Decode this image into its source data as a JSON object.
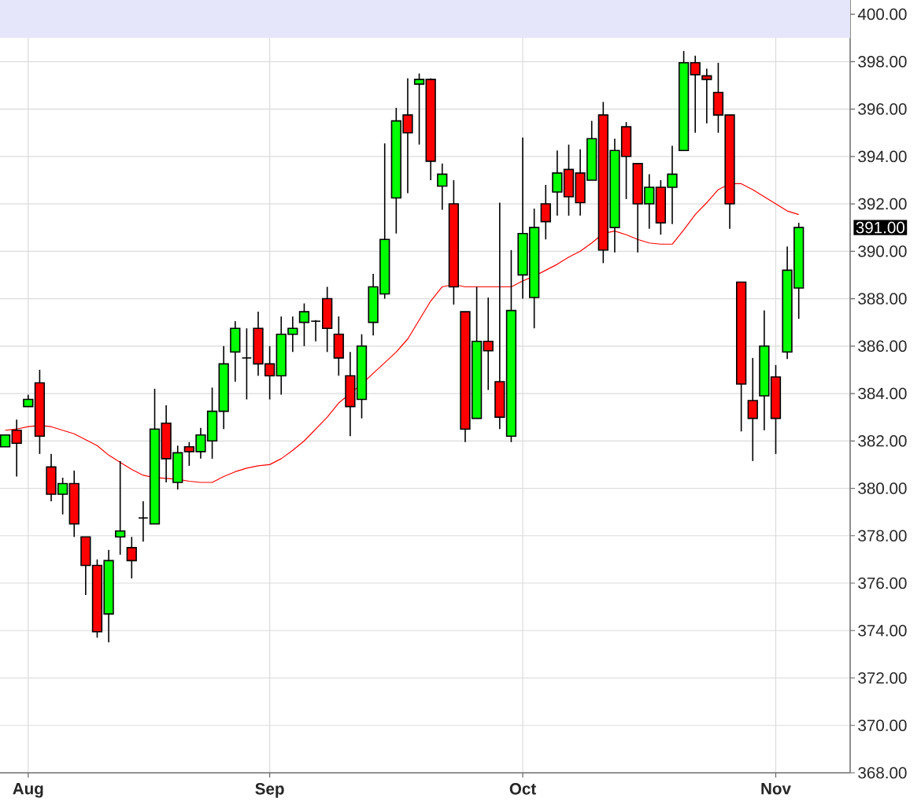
{
  "chart_data": {
    "type": "candlestick",
    "categories": [
      null,
      null,
      "Aug",
      null,
      null,
      null,
      null,
      null,
      null,
      null,
      null,
      null,
      null,
      null,
      null,
      null,
      null,
      null,
      null,
      null,
      null,
      null,
      null,
      "Sep",
      null,
      null,
      null,
      null,
      null,
      null,
      null,
      null,
      null,
      null,
      null,
      null,
      null,
      null,
      null,
      null,
      null,
      null,
      null,
      null,
      null,
      "Oct",
      null,
      null,
      null,
      null,
      null,
      null,
      null,
      null,
      null,
      null,
      null,
      null,
      null,
      null,
      null,
      null,
      null,
      null,
      null,
      null,
      null,
      "Nov",
      null,
      null
    ],
    "series": [
      {
        "type": "line",
        "color": "#ff0000",
        "values": [
          382.45,
          382.5,
          382.6,
          382.65,
          382.6,
          382.45,
          382.3,
          382.05,
          381.8,
          381.4,
          381.1,
          380.8,
          380.55,
          380.45,
          380.42,
          380.38,
          380.3,
          380.25,
          380.25,
          380.5,
          380.7,
          380.85,
          380.95,
          381.0,
          381.25,
          381.6,
          382.0,
          382.5,
          383.0,
          383.6,
          384.0,
          384.4,
          384.85,
          385.3,
          385.75,
          386.3,
          387.1,
          387.9,
          388.5,
          388.6,
          388.5,
          388.5,
          388.5,
          388.5,
          388.5,
          388.75,
          388.95,
          389.2,
          389.45,
          389.75,
          390.0,
          390.35,
          390.75,
          390.85,
          390.7,
          390.5,
          390.35,
          390.3,
          390.3,
          390.9,
          391.55,
          392.05,
          392.6,
          392.85,
          392.85,
          392.6,
          392.3,
          392.0,
          391.7,
          391.55
        ]
      },
      {
        "ohlc": [
          [
            381.75,
            382.25,
            381.75,
            382.25
          ],
          [
            382.45,
            382.9,
            380.5,
            381.9
          ],
          [
            383.45,
            383.95,
            383.45,
            383.75
          ],
          [
            384.45,
            385.0,
            381.45,
            382.2
          ],
          [
            380.9,
            381.45,
            379.45,
            379.75
          ],
          [
            379.75,
            380.45,
            378.9,
            380.2
          ],
          [
            380.2,
            380.75,
            377.95,
            378.5
          ],
          [
            377.95,
            377.95,
            375.5,
            376.75
          ],
          [
            376.75,
            377.0,
            373.7,
            373.95
          ],
          [
            374.7,
            377.4,
            373.5,
            376.95
          ],
          [
            377.95,
            381.15,
            377.2,
            378.2
          ],
          [
            377.5,
            377.95,
            376.2,
            376.95
          ],
          [
            378.75,
            379.45,
            377.75,
            378.75
          ],
          [
            378.5,
            384.2,
            378.5,
            382.5
          ],
          [
            382.75,
            383.5,
            380.25,
            381.25
          ],
          [
            380.25,
            381.8,
            379.95,
            381.5
          ],
          [
            381.75,
            381.95,
            380.95,
            381.55
          ],
          [
            381.55,
            382.55,
            381.25,
            382.25
          ],
          [
            382.0,
            384.25,
            381.25,
            383.25
          ],
          [
            383.25,
            386.0,
            382.5,
            385.25
          ],
          [
            385.75,
            387.05,
            384.5,
            386.75
          ],
          [
            385.5,
            386.75,
            383.75,
            385.5
          ],
          [
            386.75,
            387.45,
            384.75,
            385.25
          ],
          [
            385.25,
            386.0,
            383.75,
            384.75
          ],
          [
            384.75,
            387.25,
            383.95,
            386.5
          ],
          [
            386.5,
            387.25,
            385.75,
            386.75
          ],
          [
            387.0,
            387.8,
            386.0,
            387.45
          ],
          [
            387.05,
            387.1,
            386.2,
            387.05
          ],
          [
            388.0,
            388.5,
            385.75,
            386.75
          ],
          [
            386.5,
            387.25,
            384.75,
            385.5
          ],
          [
            384.75,
            385.75,
            382.2,
            383.45
          ],
          [
            383.75,
            386.5,
            382.95,
            386.0
          ],
          [
            387.0,
            389.05,
            386.45,
            388.5
          ],
          [
            388.2,
            394.55,
            388.0,
            390.5
          ],
          [
            392.25,
            396.05,
            390.75,
            395.5
          ],
          [
            395.75,
            397.3,
            392.45,
            395.0
          ],
          [
            397.05,
            397.5,
            394.5,
            397.25
          ],
          [
            397.25,
            397.3,
            393.0,
            393.8
          ],
          [
            392.75,
            393.7,
            391.75,
            393.25
          ],
          [
            392.0,
            393.0,
            387.75,
            388.5
          ],
          [
            387.45,
            387.45,
            381.95,
            382.5
          ],
          [
            382.95,
            388.5,
            382.95,
            386.2
          ],
          [
            386.2,
            388.05,
            384.15,
            385.8
          ],
          [
            384.5,
            392.05,
            382.5,
            383.0
          ],
          [
            382.2,
            390.05,
            381.95,
            387.5
          ],
          [
            389.0,
            394.8,
            388.0,
            390.75
          ],
          [
            388.05,
            391.8,
            386.75,
            391.0
          ],
          [
            392.0,
            392.8,
            390.5,
            391.25
          ],
          [
            392.5,
            394.25,
            391.5,
            393.3
          ],
          [
            393.45,
            394.5,
            391.5,
            392.3
          ],
          [
            393.3,
            394.3,
            391.5,
            392.05
          ],
          [
            393.0,
            395.5,
            393.0,
            394.75
          ],
          [
            395.75,
            396.3,
            389.5,
            390.05
          ],
          [
            391.0,
            394.75,
            389.95,
            394.25
          ],
          [
            395.25,
            395.45,
            392.2,
            394.0
          ],
          [
            393.7,
            393.7,
            389.95,
            392.0
          ],
          [
            392.0,
            393.25,
            390.95,
            392.7
          ],
          [
            392.7,
            393.0,
            390.7,
            391.2
          ],
          [
            392.7,
            394.45,
            391.15,
            393.25
          ],
          [
            394.25,
            398.45,
            394.25,
            397.95
          ],
          [
            397.95,
            398.25,
            395.0,
            397.45
          ],
          [
            397.4,
            397.7,
            395.4,
            397.25
          ],
          [
            396.7,
            397.95,
            395.0,
            395.75
          ],
          [
            395.75,
            395.75,
            390.95,
            392.0
          ],
          [
            388.7,
            388.7,
            382.4,
            384.4
          ],
          [
            383.7,
            385.5,
            381.15,
            382.95
          ],
          [
            383.9,
            387.5,
            382.45,
            386.0
          ],
          [
            384.7,
            385.2,
            381.45,
            382.95
          ],
          [
            385.75,
            390.2,
            385.45,
            389.2
          ],
          [
            388.45,
            391.2,
            387.15,
            391.0
          ]
        ],
        "colors": [
          "#00ff00",
          "#ff0000",
          "#00ff00",
          "#ff0000",
          "#ff0000",
          "#00ff00",
          "#ff0000",
          "#ff0000",
          "#ff0000",
          "#00ff00",
          "#00ff00",
          "#ff0000",
          "#000000",
          "#00ff00",
          "#ff0000",
          "#00ff00",
          "#ff0000",
          "#00ff00",
          "#00ff00",
          "#00ff00",
          "#00ff00",
          "#000000",
          "#ff0000",
          "#ff0000",
          "#00ff00",
          "#00ff00",
          "#00ff00",
          "#000000",
          "#ff0000",
          "#ff0000",
          "#ff0000",
          "#00ff00",
          "#00ff00",
          "#00ff00",
          "#00ff00",
          "#ff0000",
          "#00ff00",
          "#ff0000",
          "#00ff00",
          "#ff0000",
          "#ff0000",
          "#00ff00",
          "#ff0000",
          "#ff0000",
          "#00ff00",
          "#00ff00",
          "#00ff00",
          "#ff0000",
          "#00ff00",
          "#ff0000",
          "#ff0000",
          "#00ff00",
          "#ff0000",
          "#00ff00",
          "#ff0000",
          "#ff0000",
          "#00ff00",
          "#ff0000",
          "#00ff00",
          "#00ff00",
          "#ff0000",
          "#ff0000",
          "#ff0000",
          "#ff0000",
          "#ff0000",
          "#ff0000",
          "#00ff00",
          "#ff0000",
          "#00ff00",
          "#00ff00"
        ]
      }
    ],
    "ylim": [
      368,
      400.6
    ],
    "yticks": [
      {
        "value": 368,
        "label": "368.00"
      },
      {
        "value": 370,
        "label": "370.00"
      },
      {
        "value": 372,
        "label": "372.00"
      },
      {
        "value": 374,
        "label": "374.00"
      },
      {
        "value": 376,
        "label": "376.00"
      },
      {
        "value": 378,
        "label": "378.00"
      },
      {
        "value": 380,
        "label": "380.00"
      },
      {
        "value": 382,
        "label": "382.00"
      },
      {
        "value": 384,
        "label": "384.00"
      },
      {
        "value": 386,
        "label": "386.00"
      },
      {
        "value": 388,
        "label": "388.00"
      },
      {
        "value": 390,
        "label": "390.00"
      },
      {
        "value": 392,
        "label": "392.00"
      },
      {
        "value": 394,
        "label": "394.00"
      },
      {
        "value": 396,
        "label": "396.00"
      },
      {
        "value": 398,
        "label": "398.00"
      },
      {
        "value": 400,
        "label": "400.00"
      }
    ],
    "grid": true,
    "bands": [
      {
        "axis": "y",
        "from": 399,
        "to": 400.6,
        "color": "#e6e6fa"
      }
    ],
    "annotations": [
      "391.00"
    ]
  }
}
